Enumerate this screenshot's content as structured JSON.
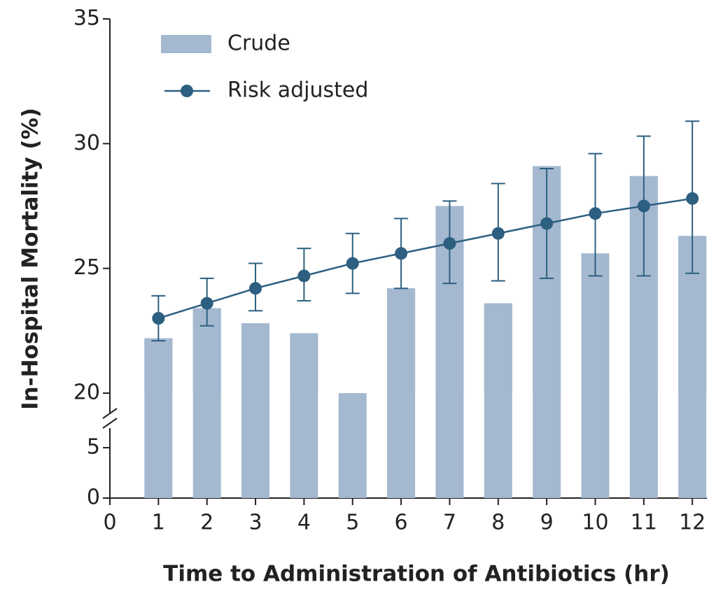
{
  "chart_data": {
    "type": "bar_line",
    "x_label": "Time to Administration of Antibiotics (hr)",
    "y_label": "In-Hospital Mortality (%)",
    "x": [
      1,
      2,
      3,
      4,
      5,
      6,
      7,
      8,
      9,
      10,
      11,
      12
    ],
    "xlim": [
      0,
      12.3
    ],
    "xticks": [
      0,
      1,
      2,
      3,
      4,
      5,
      6,
      7,
      8,
      9,
      10,
      11,
      12
    ],
    "ylim": [
      0,
      35
    ],
    "ybreak": [
      5,
      20
    ],
    "yticks": [
      0,
      5,
      20,
      25,
      30,
      35
    ],
    "legend": "top-left",
    "series": [
      {
        "name": "Crude",
        "type": "bar",
        "color": "#a4b9d0",
        "values": [
          22.2,
          23.4,
          22.8,
          22.4,
          20,
          24.2,
          27.5,
          23.6,
          29.1,
          25.6,
          28.7,
          26.3
        ]
      },
      {
        "name": "Risk adjusted",
        "type": "line",
        "color": "#2d5f80",
        "values": [
          23.0,
          23.6,
          24.2,
          24.7,
          25.2,
          25.6,
          26.0,
          26.4,
          26.8,
          27.2,
          27.5,
          27.8
        ],
        "ci_low": [
          22.1,
          22.7,
          23.3,
          23.7,
          24.0,
          24.2,
          24.4,
          24.5,
          24.6,
          24.7,
          24.7,
          24.8
        ],
        "ci_high": [
          23.9,
          24.6,
          25.2,
          25.8,
          26.4,
          27.0,
          27.7,
          28.4,
          29.0,
          29.6,
          30.3,
          30.9
        ]
      }
    ]
  }
}
